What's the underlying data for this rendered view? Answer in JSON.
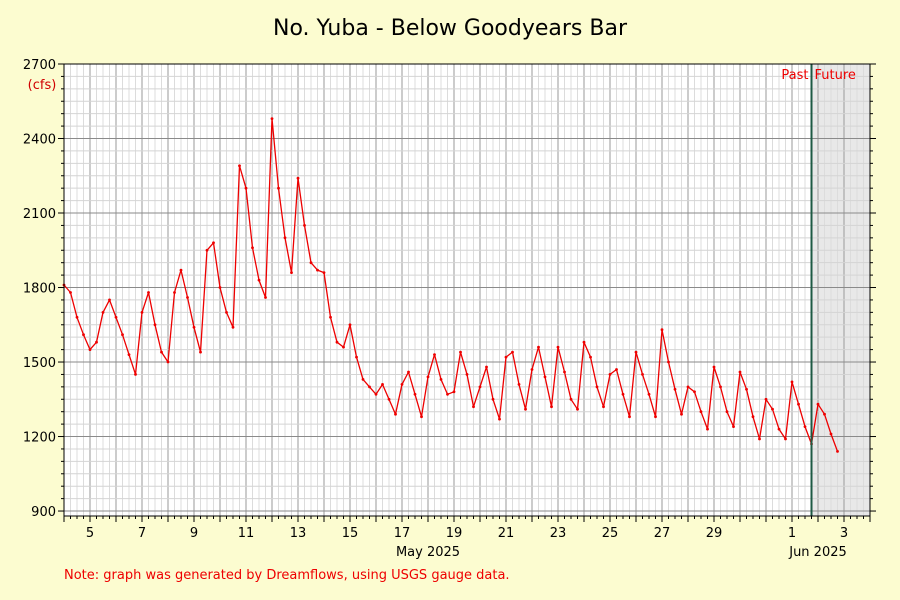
{
  "chart_data": {
    "type": "line",
    "title": "No. Yuba - Below Goodyears Bar",
    "y_unit": "(cfs)",
    "ylim": [
      880,
      2700
    ],
    "y_ticks": [
      900,
      1200,
      1500,
      1800,
      2100,
      2400,
      2700
    ],
    "xlim": [
      "2025-05-04",
      "2025-06-04"
    ],
    "x_tick_labels": [
      "5",
      "7",
      "9",
      "11",
      "13",
      "15",
      "17",
      "19",
      "21",
      "23",
      "25",
      "27",
      "29",
      "1",
      "3"
    ],
    "x_tick_dates": [
      "2025-05-05",
      "2025-05-07",
      "2025-05-09",
      "2025-05-11",
      "2025-05-13",
      "2025-05-15",
      "2025-05-17",
      "2025-05-19",
      "2025-05-21",
      "2025-05-23",
      "2025-05-25",
      "2025-05-27",
      "2025-05-29",
      "2025-06-01",
      "2025-06-03"
    ],
    "month_labels": [
      {
        "text": "May 2025",
        "date": "2025-05-18"
      },
      {
        "text": "Jun 2025",
        "date": "2025-06-02"
      }
    ],
    "now_date": "2025-06-01 18:00",
    "past_label": "Past",
    "future_label": "Future",
    "grid": true,
    "series": [
      {
        "color": "#ee0000",
        "points": [
          [
            "2025-05-04 00:00",
            1810
          ],
          [
            "2025-05-04 06:00",
            1780
          ],
          [
            "2025-05-04 12:00",
            1680
          ],
          [
            "2025-05-04 18:00",
            1610
          ],
          [
            "2025-05-05 00:00",
            1550
          ],
          [
            "2025-05-05 06:00",
            1580
          ],
          [
            "2025-05-05 12:00",
            1700
          ],
          [
            "2025-05-05 18:00",
            1750
          ],
          [
            "2025-05-06 00:00",
            1680
          ],
          [
            "2025-05-06 06:00",
            1610
          ],
          [
            "2025-05-06 12:00",
            1530
          ],
          [
            "2025-05-06 18:00",
            1450
          ],
          [
            "2025-05-07 00:00",
            1700
          ],
          [
            "2025-05-07 06:00",
            1780
          ],
          [
            "2025-05-07 12:00",
            1650
          ],
          [
            "2025-05-07 18:00",
            1540
          ],
          [
            "2025-05-08 00:00",
            1500
          ],
          [
            "2025-05-08 06:00",
            1780
          ],
          [
            "2025-05-08 12:00",
            1870
          ],
          [
            "2025-05-08 18:00",
            1760
          ],
          [
            "2025-05-09 00:00",
            1640
          ],
          [
            "2025-05-09 06:00",
            1540
          ],
          [
            "2025-05-09 12:00",
            1950
          ],
          [
            "2025-05-09 18:00",
            1980
          ],
          [
            "2025-05-10 00:00",
            1800
          ],
          [
            "2025-05-10 06:00",
            1700
          ],
          [
            "2025-05-10 12:00",
            1640
          ],
          [
            "2025-05-10 18:00",
            2290
          ],
          [
            "2025-05-11 00:00",
            2200
          ],
          [
            "2025-05-11 06:00",
            1960
          ],
          [
            "2025-05-11 12:00",
            1830
          ],
          [
            "2025-05-11 18:00",
            1760
          ],
          [
            "2025-05-12 00:00",
            2480
          ],
          [
            "2025-05-12 06:00",
            2200
          ],
          [
            "2025-05-12 12:00",
            2000
          ],
          [
            "2025-05-12 18:00",
            1860
          ],
          [
            "2025-05-13 00:00",
            2240
          ],
          [
            "2025-05-13 06:00",
            2050
          ],
          [
            "2025-05-13 12:00",
            1900
          ],
          [
            "2025-05-13 18:00",
            1870
          ],
          [
            "2025-05-14 00:00",
            1860
          ],
          [
            "2025-05-14 06:00",
            1680
          ],
          [
            "2025-05-14 12:00",
            1580
          ],
          [
            "2025-05-14 18:00",
            1560
          ],
          [
            "2025-05-15 00:00",
            1650
          ],
          [
            "2025-05-15 06:00",
            1520
          ],
          [
            "2025-05-15 12:00",
            1430
          ],
          [
            "2025-05-15 18:00",
            1400
          ],
          [
            "2025-05-16 00:00",
            1370
          ],
          [
            "2025-05-16 06:00",
            1410
          ],
          [
            "2025-05-16 12:00",
            1350
          ],
          [
            "2025-05-16 18:00",
            1290
          ],
          [
            "2025-05-17 00:00",
            1410
          ],
          [
            "2025-05-17 06:00",
            1460
          ],
          [
            "2025-05-17 12:00",
            1370
          ],
          [
            "2025-05-17 18:00",
            1280
          ],
          [
            "2025-05-18 00:00",
            1440
          ],
          [
            "2025-05-18 06:00",
            1530
          ],
          [
            "2025-05-18 12:00",
            1430
          ],
          [
            "2025-05-18 18:00",
            1370
          ],
          [
            "2025-05-19 00:00",
            1380
          ],
          [
            "2025-05-19 06:00",
            1540
          ],
          [
            "2025-05-19 12:00",
            1450
          ],
          [
            "2025-05-19 18:00",
            1320
          ],
          [
            "2025-05-20 00:00",
            1400
          ],
          [
            "2025-05-20 06:00",
            1480
          ],
          [
            "2025-05-20 12:00",
            1350
          ],
          [
            "2025-05-20 18:00",
            1270
          ],
          [
            "2025-05-21 00:00",
            1520
          ],
          [
            "2025-05-21 06:00",
            1540
          ],
          [
            "2025-05-21 12:00",
            1410
          ],
          [
            "2025-05-21 18:00",
            1310
          ],
          [
            "2025-05-22 00:00",
            1470
          ],
          [
            "2025-05-22 06:00",
            1560
          ],
          [
            "2025-05-22 12:00",
            1440
          ],
          [
            "2025-05-22 18:00",
            1320
          ],
          [
            "2025-05-23 00:00",
            1560
          ],
          [
            "2025-05-23 06:00",
            1460
          ],
          [
            "2025-05-23 12:00",
            1350
          ],
          [
            "2025-05-23 18:00",
            1310
          ],
          [
            "2025-05-24 00:00",
            1580
          ],
          [
            "2025-05-24 06:00",
            1520
          ],
          [
            "2025-05-24 12:00",
            1400
          ],
          [
            "2025-05-24 18:00",
            1320
          ],
          [
            "2025-05-25 00:00",
            1450
          ],
          [
            "2025-05-25 06:00",
            1470
          ],
          [
            "2025-05-25 12:00",
            1370
          ],
          [
            "2025-05-25 18:00",
            1280
          ],
          [
            "2025-05-26 00:00",
            1540
          ],
          [
            "2025-05-26 06:00",
            1450
          ],
          [
            "2025-05-26 12:00",
            1370
          ],
          [
            "2025-05-26 18:00",
            1280
          ],
          [
            "2025-05-27 00:00",
            1630
          ],
          [
            "2025-05-27 06:00",
            1500
          ],
          [
            "2025-05-27 12:00",
            1390
          ],
          [
            "2025-05-27 18:00",
            1290
          ],
          [
            "2025-05-28 00:00",
            1400
          ],
          [
            "2025-05-28 06:00",
            1380
          ],
          [
            "2025-05-28 12:00",
            1300
          ],
          [
            "2025-05-28 18:00",
            1230
          ],
          [
            "2025-05-29 00:00",
            1480
          ],
          [
            "2025-05-29 06:00",
            1400
          ],
          [
            "2025-05-29 12:00",
            1300
          ],
          [
            "2025-05-29 18:00",
            1240
          ],
          [
            "2025-05-30 00:00",
            1460
          ],
          [
            "2025-05-30 06:00",
            1390
          ],
          [
            "2025-05-30 12:00",
            1280
          ],
          [
            "2025-05-30 18:00",
            1190
          ],
          [
            "2025-05-31 00:00",
            1350
          ],
          [
            "2025-05-31 06:00",
            1310
          ],
          [
            "2025-05-31 12:00",
            1230
          ],
          [
            "2025-05-31 18:00",
            1190
          ],
          [
            "2025-06-01 00:00",
            1420
          ],
          [
            "2025-06-01 06:00",
            1330
          ],
          [
            "2025-06-01 12:00",
            1240
          ],
          [
            "2025-06-01 18:00",
            1170
          ],
          [
            "2025-06-02 00:00",
            1330
          ],
          [
            "2025-06-02 06:00",
            1290
          ],
          [
            "2025-06-02 12:00",
            1210
          ],
          [
            "2025-06-02 18:00",
            1140
          ]
        ]
      }
    ]
  },
  "footer": {
    "note": "Note: graph was generated by Dreamflows, using USGS gauge data."
  }
}
